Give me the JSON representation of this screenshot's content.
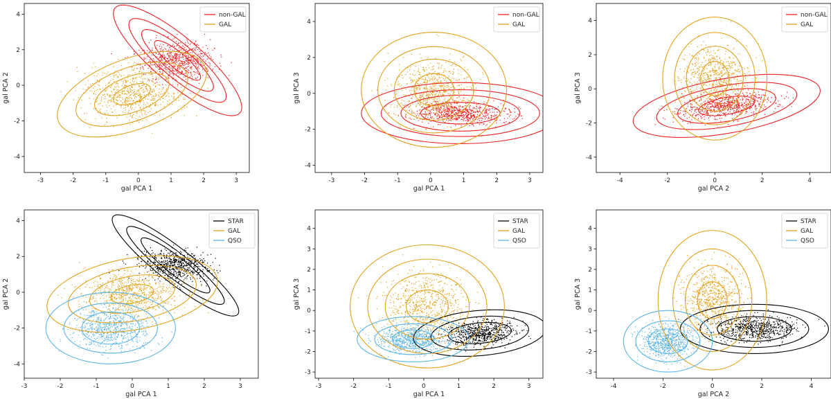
{
  "figure": {
    "colors": {
      "star": "#000000",
      "nongal": "#ee2222",
      "gal": "#e2a21c",
      "qso": "#58b4e8",
      "axis": "#000000"
    }
  },
  "chart_data": [
    {
      "type": "scatter",
      "xlabel": "gal PCA 1",
      "ylabel": "gal PCA 2",
      "xlim": [
        -3.5,
        3.4
      ],
      "ylim": [
        -4.9,
        4.6
      ],
      "xticks": [
        -3,
        -2,
        -1,
        0,
        1,
        2,
        3
      ],
      "yticks": [
        -4,
        -2,
        0,
        2,
        4
      ],
      "legend_position": "top-right",
      "series": [
        {
          "name": "non-GAL",
          "color": "#ee2222",
          "center": [
            1.2,
            1.4
          ],
          "spread": [
            0.55,
            0.55
          ],
          "angle": -40,
          "contour_radii": [
            [
              2.5,
              1.3
            ],
            [
              1.9,
              0.95
            ],
            [
              1.4,
              0.7
            ],
            [
              0.9,
              0.45
            ]
          ]
        },
        {
          "name": "GAL",
          "color": "#e2a21c",
          "center": [
            -0.2,
            -0.5
          ],
          "spread": [
            0.7,
            0.7
          ],
          "angle": 20,
          "contour_radii": [
            [
              2.4,
              2.0
            ],
            [
              1.8,
              1.5
            ],
            [
              1.2,
              1.0
            ],
            [
              0.6,
              0.5
            ]
          ]
        }
      ]
    },
    {
      "type": "scatter",
      "xlabel": "gal PCA 1",
      "ylabel": "gal PCA 3",
      "xlim": [
        -3.5,
        3.4
      ],
      "ylim": [
        -4.4,
        5.0
      ],
      "xticks": [
        -3,
        -2,
        -1,
        0,
        1,
        2,
        3
      ],
      "yticks": [
        -4,
        -2,
        0,
        2,
        4
      ],
      "legend_position": "top-right",
      "series": [
        {
          "name": "non-GAL",
          "color": "#ee2222",
          "center": [
            0.9,
            -1.1
          ],
          "spread": [
            0.7,
            0.3
          ],
          "angle": 0,
          "contour_radii": [
            [
              3.0,
              1.7
            ],
            [
              2.4,
              1.3
            ],
            [
              1.8,
              1.0
            ],
            [
              1.2,
              0.6
            ]
          ]
        },
        {
          "name": "GAL",
          "color": "#e2a21c",
          "center": [
            0.1,
            0.2
          ],
          "spread": [
            0.6,
            0.8
          ],
          "angle": 0,
          "contour_radii": [
            [
              2.2,
              3.2
            ],
            [
              1.7,
              2.4
            ],
            [
              1.2,
              1.7
            ],
            [
              0.6,
              0.9
            ]
          ]
        }
      ]
    },
    {
      "type": "scatter",
      "xlabel": "gal PCA 2",
      "ylabel": "gal PCA 3",
      "xlim": [
        -5.0,
        4.9
      ],
      "ylim": [
        -4.9,
        5.0
      ],
      "xticks": [
        -4,
        -2,
        0,
        2,
        4
      ],
      "yticks": [
        -4,
        -2,
        0,
        2,
        4
      ],
      "legend_position": "top-right",
      "series": [
        {
          "name": "non-GAL",
          "color": "#ee2222",
          "center": [
            0.5,
            -1.0
          ],
          "spread": [
            1.0,
            0.35
          ],
          "angle": 10,
          "contour_radii": [
            [
              4.0,
              1.6
            ],
            [
              3.0,
              1.2
            ],
            [
              2.1,
              0.9
            ],
            [
              1.2,
              0.5
            ]
          ]
        },
        {
          "name": "GAL",
          "color": "#e2a21c",
          "center": [
            0.0,
            0.6
          ],
          "spread": [
            0.7,
            0.9
          ],
          "angle": 0,
          "contour_radii": [
            [
              2.2,
              3.6
            ],
            [
              1.7,
              2.7
            ],
            [
              1.2,
              1.9
            ],
            [
              0.6,
              1.0
            ]
          ]
        }
      ]
    },
    {
      "type": "scatter",
      "xlabel": "gal PCA 1",
      "ylabel": "gal PCA 2",
      "xlim": [
        -3.0,
        3.5
      ],
      "ylim": [
        -4.8,
        4.6
      ],
      "xticks": [
        -3,
        -2,
        -1,
        0,
        1,
        2,
        3
      ],
      "yticks": [
        -4,
        -2,
        0,
        2,
        4
      ],
      "legend_position": "top-right",
      "series": [
        {
          "name": "STAR",
          "color": "#000000",
          "center": [
            1.2,
            1.5
          ],
          "spread": [
            0.5,
            0.4
          ],
          "angle": -38,
          "contour_radii": [
            [
              2.2,
              0.95
            ],
            [
              1.7,
              0.7
            ],
            [
              1.2,
              0.5
            ]
          ]
        },
        {
          "name": "GAL",
          "color": "#e2a21c",
          "center": [
            0.0,
            -0.1
          ],
          "spread": [
            0.7,
            0.6
          ],
          "angle": 10,
          "contour_radii": [
            [
              2.4,
              2.0
            ],
            [
              1.8,
              1.5
            ],
            [
              1.2,
              1.0
            ],
            [
              0.6,
              0.5
            ]
          ]
        },
        {
          "name": "QSO",
          "color": "#58b4e8",
          "center": [
            -0.6,
            -2.0
          ],
          "spread": [
            0.5,
            0.6
          ],
          "angle": 0,
          "contour_radii": [
            [
              1.8,
              2.0
            ],
            [
              1.3,
              1.4
            ],
            [
              0.8,
              0.9
            ]
          ]
        }
      ]
    },
    {
      "type": "scatter",
      "xlabel": "gal PCA 1",
      "ylabel": "gal PCA 3",
      "xlim": [
        -3.1,
        3.4
      ],
      "ylim": [
        -3.3,
        4.9
      ],
      "xticks": [
        -3,
        -2,
        -1,
        0,
        1,
        2,
        3
      ],
      "yticks": [
        -3,
        -2,
        -1,
        0,
        1,
        2,
        3,
        4
      ],
      "legend_position": "top-right",
      "series": [
        {
          "name": "STAR",
          "color": "#000000",
          "center": [
            1.6,
            -1.1
          ],
          "spread": [
            0.5,
            0.3
          ],
          "angle": 5,
          "contour_radii": [
            [
              1.9,
              1.1
            ],
            [
              1.4,
              0.8
            ],
            [
              0.9,
              0.5
            ]
          ]
        },
        {
          "name": "GAL",
          "color": "#e2a21c",
          "center": [
            0.1,
            0.2
          ],
          "spread": [
            0.6,
            0.8
          ],
          "angle": 0,
          "contour_radii": [
            [
              2.2,
              3.0
            ],
            [
              1.7,
              2.3
            ],
            [
              1.2,
              1.6
            ],
            [
              0.6,
              0.8
            ]
          ]
        },
        {
          "name": "QSO",
          "color": "#58b4e8",
          "center": [
            -0.3,
            -1.4
          ],
          "spread": [
            0.5,
            0.3
          ],
          "angle": 0,
          "contour_radii": [
            [
              1.6,
              1.1
            ],
            [
              1.1,
              0.75
            ],
            [
              0.6,
              0.45
            ]
          ]
        }
      ]
    },
    {
      "type": "scatter",
      "xlabel": "gal PCA 2",
      "ylabel": "gal PCA 3",
      "xlim": [
        -4.7,
        4.8
      ],
      "ylim": [
        -3.3,
        4.9
      ],
      "xticks": [
        -4,
        -2,
        0,
        2,
        4
      ],
      "yticks": [
        -3,
        -2,
        -1,
        0,
        1,
        2,
        3,
        4
      ],
      "legend_position": "top-right",
      "series": [
        {
          "name": "STAR",
          "color": "#000000",
          "center": [
            1.7,
            -0.9
          ],
          "spread": [
            0.8,
            0.3
          ],
          "angle": 0,
          "contour_radii": [
            [
              3.0,
              1.2
            ],
            [
              2.2,
              0.9
            ],
            [
              1.5,
              0.6
            ]
          ]
        },
        {
          "name": "GAL",
          "color": "#e2a21c",
          "center": [
            0.0,
            0.5
          ],
          "spread": [
            0.6,
            0.8
          ],
          "angle": 0,
          "contour_radii": [
            [
              2.2,
              3.4
            ],
            [
              1.6,
              2.5
            ],
            [
              1.1,
              1.7
            ],
            [
              0.6,
              0.9
            ]
          ]
        },
        {
          "name": "QSO",
          "color": "#58b4e8",
          "center": [
            -1.8,
            -1.5
          ],
          "spread": [
            0.5,
            0.4
          ],
          "angle": 0,
          "contour_radii": [
            [
              1.8,
              1.5
            ],
            [
              1.3,
              1.0
            ],
            [
              0.8,
              0.6
            ]
          ]
        }
      ]
    }
  ]
}
